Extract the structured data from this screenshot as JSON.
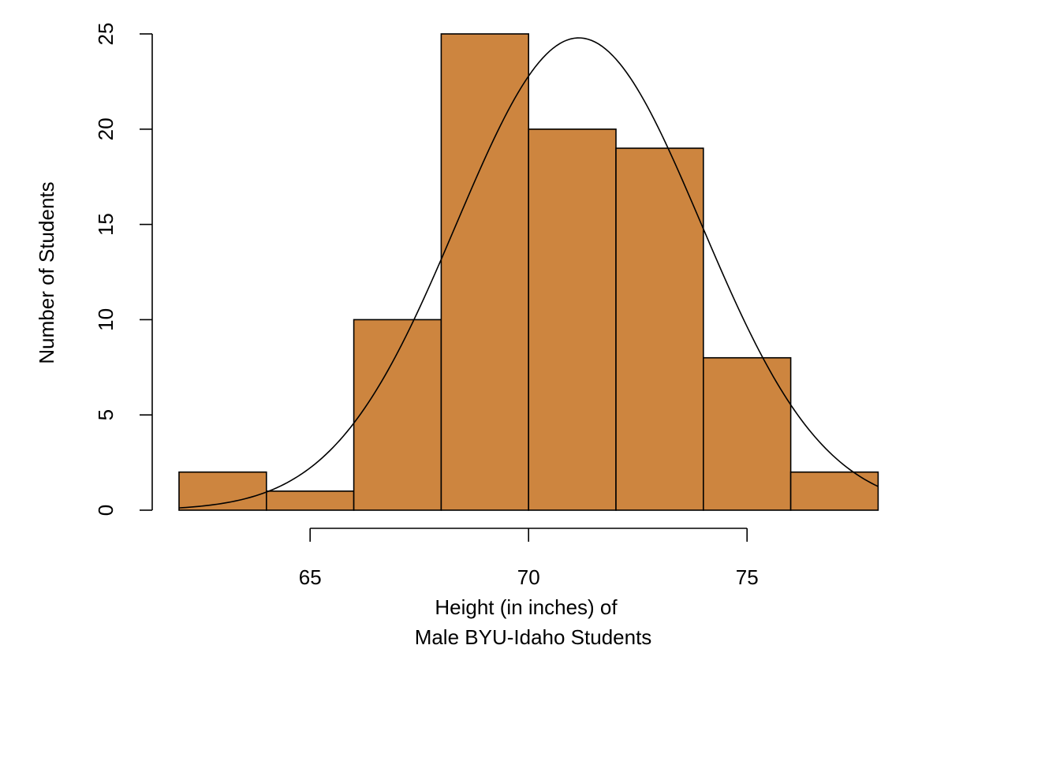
{
  "chart_data": {
    "type": "bar",
    "subtype": "histogram",
    "title": "",
    "xlabel_lines": [
      "Height (in inches) of",
      "Male BYU-Idaho Students"
    ],
    "ylabel": "Number of Students",
    "bar_color": "#CD853F",
    "bins": [
      {
        "from": 62,
        "to": 64,
        "count": 2
      },
      {
        "from": 64,
        "to": 66,
        "count": 1
      },
      {
        "from": 66,
        "to": 68,
        "count": 10
      },
      {
        "from": 68,
        "to": 70,
        "count": 25
      },
      {
        "from": 70,
        "to": 72,
        "count": 20
      },
      {
        "from": 72,
        "to": 74,
        "count": 19
      },
      {
        "from": 74,
        "to": 76,
        "count": 8
      },
      {
        "from": 76,
        "to": 78,
        "count": 2
      }
    ],
    "x_axis": {
      "range": [
        65,
        75
      ],
      "ticks": [
        65,
        70,
        75
      ],
      "tick_labels": [
        "65",
        "70",
        "75"
      ]
    },
    "y_axis": {
      "range": [
        0,
        25
      ],
      "ticks": [
        0,
        5,
        10,
        15,
        20,
        25
      ],
      "tick_labels": [
        "0",
        "5",
        "10",
        "15",
        "20",
        "25"
      ]
    },
    "overlay_curve": {
      "type": "normal-density",
      "mean": 71.15,
      "sd": 2.8,
      "n": 87,
      "bin_width": 2,
      "x_range": [
        62,
        78
      ]
    },
    "grid": false,
    "legend": "none"
  }
}
